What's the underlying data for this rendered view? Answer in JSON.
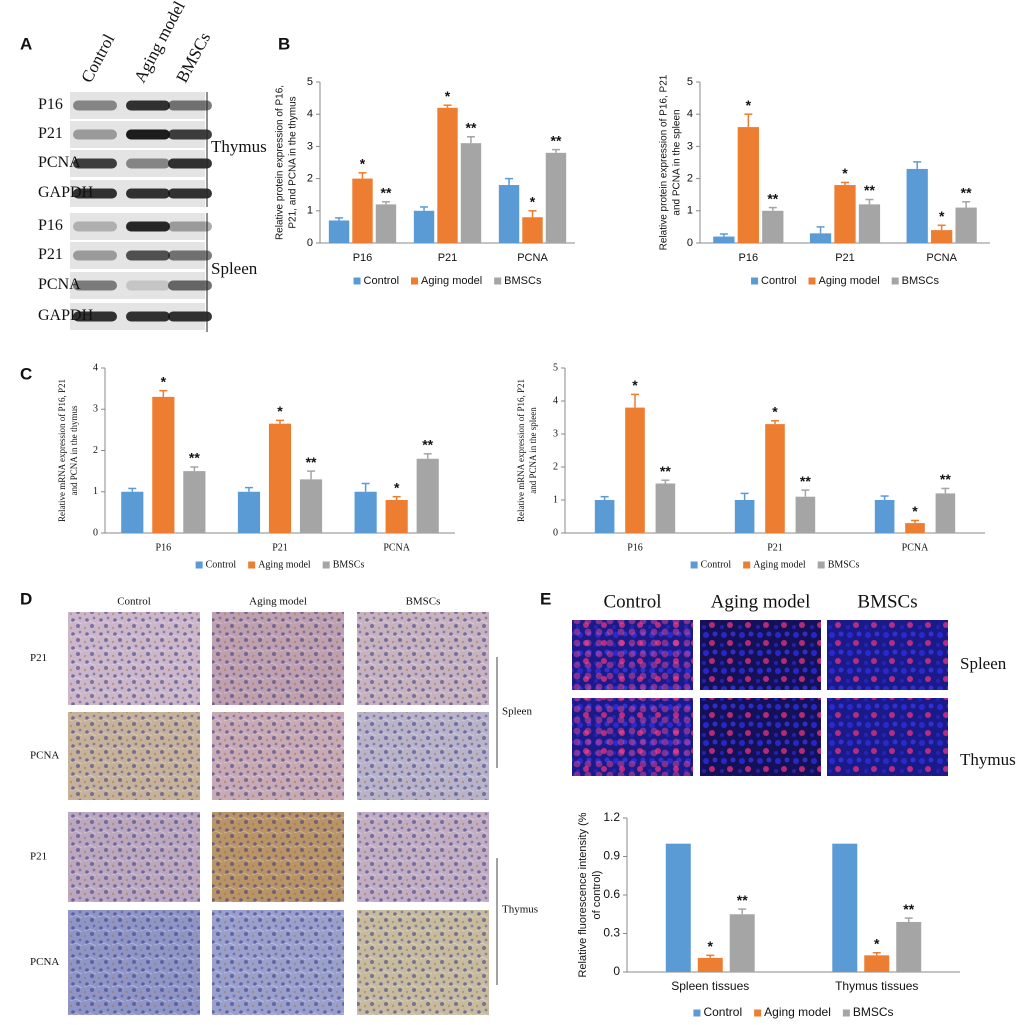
{
  "panel_letters": [
    "A",
    "B",
    "C",
    "D",
    "E"
  ],
  "blot": {
    "columns": [
      "Control",
      "Aging model",
      "BMSCs"
    ],
    "rows": [
      "P16",
      "P21",
      "PCNA",
      "GAPDH",
      "P16",
      "P21",
      "PCNA",
      "GAPDH"
    ],
    "groups": [
      "Thymus",
      "Spleen"
    ]
  },
  "ihc": {
    "columns": [
      "Control",
      "Aging model",
      "BMSCs"
    ],
    "rows": [
      "P21",
      "PCNA",
      "P21",
      "PCNA"
    ],
    "groups": [
      "Spleen",
      "Thymus"
    ]
  },
  "immunofluorescence": {
    "columns": [
      "Control",
      "Aging model",
      "BMSCs"
    ],
    "rows": [
      "Spleen",
      "Thymus"
    ]
  },
  "chart_data": [
    {
      "type": "bar",
      "ylabel": [
        "Relative protein expression of P16,",
        "P21, and PCNA in the thymus"
      ],
      "categories": [
        "P16",
        "P21",
        "PCNA"
      ],
      "ylim": [
        0,
        5
      ],
      "yticks": [
        0,
        1,
        2,
        3,
        4,
        5
      ],
      "series": [
        {
          "name": "Control",
          "color": "#5b9bd5",
          "values": [
            0.7,
            1.0,
            1.8
          ],
          "errors": [
            0.08,
            0.12,
            0.2
          ]
        },
        {
          "name": "Aging model",
          "color": "#ed7d31",
          "values": [
            2.0,
            4.2,
            0.8
          ],
          "errors": [
            0.18,
            0.08,
            0.2
          ],
          "marker": "*"
        },
        {
          "name": "BMSCs",
          "color": "#a5a5a5",
          "values": [
            1.2,
            3.1,
            2.8
          ],
          "errors": [
            0.08,
            0.2,
            0.1
          ],
          "marker": "**"
        }
      ]
    },
    {
      "type": "bar",
      "ylabel": [
        "Relative protein expression of P16, P21",
        "and PCNA in the spleen"
      ],
      "categories": [
        "P16",
        "P21",
        "PCNA"
      ],
      "ylim": [
        0,
        5
      ],
      "yticks": [
        0,
        1,
        2,
        3,
        4,
        5
      ],
      "series": [
        {
          "name": "Control",
          "color": "#5b9bd5",
          "values": [
            0.2,
            0.3,
            2.3
          ],
          "errors": [
            0.08,
            0.2,
            0.22
          ]
        },
        {
          "name": "Aging model",
          "color": "#ed7d31",
          "values": [
            3.6,
            1.8,
            0.4
          ],
          "errors": [
            0.4,
            0.08,
            0.15
          ],
          "marker": "*"
        },
        {
          "name": "BMSCs",
          "color": "#a5a5a5",
          "values": [
            1.0,
            1.2,
            1.1
          ],
          "errors": [
            0.1,
            0.15,
            0.18
          ],
          "marker": "**"
        }
      ]
    },
    {
      "type": "bar",
      "ylabel": [
        "Relative mRNA expression of P16, P21",
        "and PCNA in the thymus"
      ],
      "categories": [
        "P16",
        "P21",
        "PCNA"
      ],
      "ylim": [
        0,
        4
      ],
      "yticks": [
        0,
        1,
        2,
        3,
        4
      ],
      "series": [
        {
          "name": "Control",
          "color": "#5b9bd5",
          "values": [
            1.0,
            1.0,
            1.0
          ],
          "errors": [
            0.08,
            0.1,
            0.2
          ]
        },
        {
          "name": "Aging model",
          "color": "#ed7d31",
          "values": [
            3.3,
            2.65,
            0.8
          ],
          "errors": [
            0.15,
            0.08,
            0.08
          ],
          "marker": "*"
        },
        {
          "name": "BMSCs",
          "color": "#a5a5a5",
          "values": [
            1.5,
            1.3,
            1.8
          ],
          "errors": [
            0.1,
            0.2,
            0.12
          ],
          "marker": "**"
        }
      ]
    },
    {
      "type": "bar",
      "ylabel": [
        "Relative mRNA expression of P16, P21",
        "and PCNA in the spleen"
      ],
      "categories": [
        "P16",
        "P21",
        "PCNA"
      ],
      "ylim": [
        0,
        5
      ],
      "yticks": [
        0,
        1,
        2,
        3,
        4,
        5
      ],
      "series": [
        {
          "name": "Control",
          "color": "#5b9bd5",
          "values": [
            1.0,
            1.0,
            1.0
          ],
          "errors": [
            0.1,
            0.2,
            0.12
          ]
        },
        {
          "name": "Aging model",
          "color": "#ed7d31",
          "values": [
            3.8,
            3.3,
            0.3
          ],
          "errors": [
            0.4,
            0.1,
            0.08
          ],
          "marker": "*"
        },
        {
          "name": "BMSCs",
          "color": "#a5a5a5",
          "values": [
            1.5,
            1.1,
            1.2
          ],
          "errors": [
            0.1,
            0.2,
            0.15
          ],
          "marker": "**"
        }
      ]
    },
    {
      "type": "bar",
      "ylabel": [
        "Relative fluorescence intensity (%",
        "of control)"
      ],
      "categories": [
        "Spleen tissues",
        "Thymus tissues"
      ],
      "ylim": [
        0,
        1.2
      ],
      "yticks": [
        0,
        0.3,
        0.6,
        0.9,
        1.2
      ],
      "series": [
        {
          "name": "Control",
          "color": "#5b9bd5",
          "values": [
            1,
            1
          ]
        },
        {
          "name": "Aging model",
          "color": "#ed7d31",
          "values": [
            0.11,
            0.13
          ],
          "errors": [
            0.02,
            0.02
          ],
          "marker": "*"
        },
        {
          "name": "BMSCs",
          "color": "#a5a5a5",
          "values": [
            0.45,
            0.39
          ],
          "errors": [
            0.04,
            0.03
          ],
          "marker": "**"
        }
      ]
    }
  ]
}
